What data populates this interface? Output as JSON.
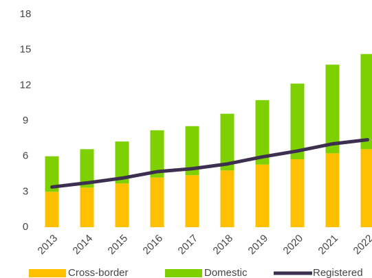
{
  "chart_data": {
    "type": "bar",
    "categories": [
      "2013",
      "2014",
      "2015",
      "2016",
      "2017",
      "2018",
      "2019",
      "2020",
      "2021",
      "2022"
    ],
    "series": [
      {
        "name": "Cross-border",
        "color": "#ffc000",
        "values": [
          3.0,
          3.35,
          3.7,
          4.2,
          4.4,
          4.8,
          5.3,
          5.75,
          6.25,
          6.6
        ]
      },
      {
        "name": "Domestic",
        "color": "#7ed000",
        "values": [
          3.0,
          3.25,
          3.55,
          4.0,
          4.15,
          4.8,
          5.45,
          6.4,
          7.5,
          8.05
        ]
      },
      {
        "name": "Registered",
        "color": "#3d2f4f",
        "type": "line",
        "values": [
          3.4,
          3.75,
          4.15,
          4.7,
          4.95,
          5.35,
          5.95,
          6.45,
          7.05,
          7.4
        ]
      }
    ],
    "stacked": true,
    "ylim": [
      0,
      18
    ],
    "yticks": [
      0,
      3,
      6,
      9,
      12,
      15,
      18
    ],
    "grid": false,
    "legend": "bottom"
  }
}
